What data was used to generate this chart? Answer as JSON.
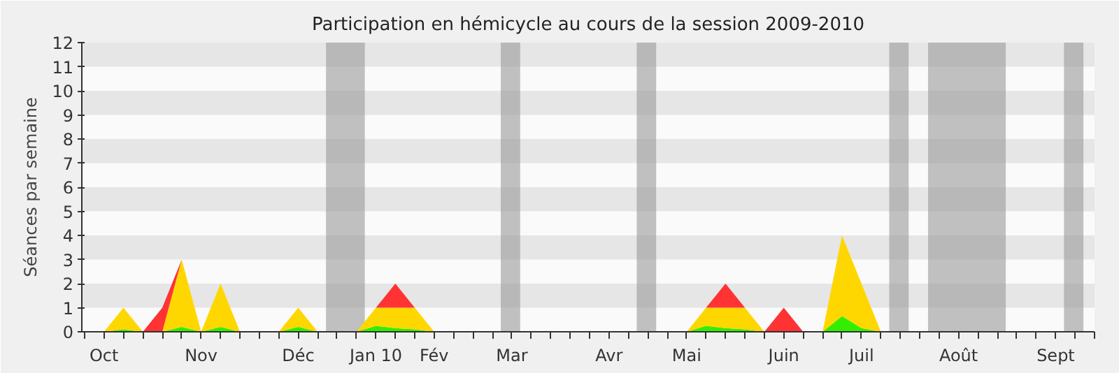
{
  "chart_data": {
    "type": "area",
    "title": "Participation en hémicycle au cours de la session 2009-2010",
    "ylabel": "Séances par semaine",
    "x": [
      "2009-09-28",
      "2009-10-05",
      "2009-10-12",
      "2009-10-19",
      "2009-10-26",
      "2009-11-02",
      "2009-11-09",
      "2009-11-16",
      "2009-11-23",
      "2009-11-30",
      "2009-12-07",
      "2009-12-14",
      "2009-12-21",
      "2009-12-28",
      "2010-01-04",
      "2010-01-11",
      "2010-01-18",
      "2010-01-25",
      "2010-02-01",
      "2010-02-08",
      "2010-02-15",
      "2010-02-22",
      "2010-03-01",
      "2010-03-08",
      "2010-03-15",
      "2010-03-22",
      "2010-03-29",
      "2010-04-05",
      "2010-04-12",
      "2010-04-19",
      "2010-04-26",
      "2010-05-03",
      "2010-05-10",
      "2010-05-17",
      "2010-05-24",
      "2010-05-31",
      "2010-06-07",
      "2010-06-14",
      "2010-06-21",
      "2010-06-28",
      "2010-07-05",
      "2010-07-12",
      "2010-07-19",
      "2010-07-26",
      "2010-08-02",
      "2010-08-09",
      "2010-08-16",
      "2010-08-23",
      "2010-08-30",
      "2010-09-06",
      "2010-09-13",
      "2010-09-20",
      "2010-09-27"
    ],
    "series": [
      {
        "color": "#33ee00",
        "values": [
          0,
          0,
          0.1,
          0,
          0,
          0.2,
          0,
          0.2,
          0,
          0,
          0,
          0.2,
          0,
          0,
          0,
          0.25,
          0.15,
          0.1,
          0,
          0,
          0,
          0,
          0,
          0,
          0,
          0,
          0,
          0,
          0,
          0,
          0,
          0,
          0.25,
          0.15,
          0.1,
          0,
          0,
          0,
          0,
          0.65,
          0.15,
          0,
          0,
          0,
          0,
          0,
          0,
          0,
          0,
          0,
          0,
          0,
          0
        ]
      },
      {
        "color": "#ffd700",
        "values": [
          0,
          0,
          0.9,
          0,
          0,
          2.8,
          0,
          1.8,
          0,
          0,
          0,
          0.8,
          0,
          0,
          0,
          0.75,
          0.85,
          0.9,
          0,
          0,
          0,
          0,
          0,
          0,
          0,
          0,
          0,
          0,
          0,
          0,
          0,
          0,
          0.75,
          0.85,
          0.9,
          0,
          0,
          0,
          0,
          3.35,
          1.85,
          0,
          0,
          0,
          0,
          0,
          0,
          0,
          0,
          0,
          0,
          0,
          0
        ]
      },
      {
        "color": "#ff3333",
        "values": [
          null,
          null,
          null,
          0,
          1,
          0,
          null,
          null,
          null,
          null,
          null,
          null,
          null,
          null,
          null,
          0,
          1,
          0,
          null,
          null,
          null,
          null,
          null,
          null,
          null,
          null,
          null,
          null,
          null,
          null,
          null,
          null,
          0,
          1,
          0,
          0,
          1,
          0,
          null,
          null,
          null,
          null,
          null,
          null,
          null,
          null,
          null,
          null,
          null,
          null,
          null,
          null,
          null
        ]
      }
    ],
    "stacked": true,
    "xlim": [
      "2009-09-27",
      "2010-09-27"
    ],
    "xticks": [
      {
        "value": "2009-09-28",
        "label": null
      },
      {
        "value": "2009-10-05",
        "label": "Oct"
      },
      {
        "value": "2009-10-12",
        "label": null
      },
      {
        "value": "2009-10-19",
        "label": null
      },
      {
        "value": "2009-10-26",
        "label": null
      },
      {
        "value": "2009-11-02",
        "label": null
      },
      {
        "value": "2009-11-09",
        "label": "Nov"
      },
      {
        "value": "2009-11-16",
        "label": null
      },
      {
        "value": "2009-11-23",
        "label": null
      },
      {
        "value": "2009-11-30",
        "label": null
      },
      {
        "value": "2009-12-07",
        "label": null
      },
      {
        "value": "2009-12-14",
        "label": "Déc"
      },
      {
        "value": "2009-12-21",
        "label": null
      },
      {
        "value": "2009-12-28",
        "label": null
      },
      {
        "value": "2010-01-04",
        "label": null
      },
      {
        "value": "2010-01-11",
        "label": "Jan 10"
      },
      {
        "value": "2010-01-18",
        "label": null
      },
      {
        "value": "2010-01-25",
        "label": null
      },
      {
        "value": "2010-02-01",
        "label": "Fév"
      },
      {
        "value": "2010-02-08",
        "label": null
      },
      {
        "value": "2010-02-15",
        "label": null
      },
      {
        "value": "2010-02-22",
        "label": null
      },
      {
        "value": "2010-03-01",
        "label": "Mar"
      },
      {
        "value": "2010-03-08",
        "label": null
      },
      {
        "value": "2010-03-15",
        "label": null
      },
      {
        "value": "2010-03-22",
        "label": null
      },
      {
        "value": "2010-03-29",
        "label": null
      },
      {
        "value": "2010-04-05",
        "label": "Avr"
      },
      {
        "value": "2010-04-12",
        "label": null
      },
      {
        "value": "2010-04-19",
        "label": null
      },
      {
        "value": "2010-04-26",
        "label": null
      },
      {
        "value": "2010-05-03",
        "label": "Mai"
      },
      {
        "value": "2010-05-10",
        "label": null
      },
      {
        "value": "2010-05-17",
        "label": null
      },
      {
        "value": "2010-05-24",
        "label": null
      },
      {
        "value": "2010-05-31",
        "label": null
      },
      {
        "value": "2010-06-07",
        "label": "Juin"
      },
      {
        "value": "2010-06-14",
        "label": null
      },
      {
        "value": "2010-06-21",
        "label": null
      },
      {
        "value": "2010-06-28",
        "label": null
      },
      {
        "value": "2010-07-05",
        "label": "Juil"
      },
      {
        "value": "2010-07-12",
        "label": null
      },
      {
        "value": "2010-07-19",
        "label": null
      },
      {
        "value": "2010-07-26",
        "label": null
      },
      {
        "value": "2010-08-02",
        "label": null
      },
      {
        "value": "2010-08-09",
        "label": "Août"
      },
      {
        "value": "2010-08-16",
        "label": null
      },
      {
        "value": "2010-08-23",
        "label": null
      },
      {
        "value": "2010-08-30",
        "label": null
      },
      {
        "value": "2010-09-06",
        "label": null
      },
      {
        "value": "2010-09-13",
        "label": "Sept"
      },
      {
        "value": "2010-09-20",
        "label": null
      },
      {
        "value": "2010-09-27",
        "label": null
      }
    ],
    "ylim": [
      0,
      12
    ],
    "yticks": [
      0,
      1,
      2,
      3,
      4,
      5,
      6,
      7,
      8,
      9,
      10,
      11,
      12
    ],
    "bands": [
      {
        "axis": "x",
        "from": "2009-12-24",
        "to": "2010-01-07",
        "color": "#999999"
      },
      {
        "axis": "x",
        "from": "2010-02-25",
        "to": "2010-03-04",
        "color": "#999999"
      },
      {
        "axis": "x",
        "from": "2010-04-15",
        "to": "2010-04-22",
        "color": "#999999"
      },
      {
        "axis": "x",
        "from": "2010-07-15",
        "to": "2010-07-22",
        "color": "#999999"
      },
      {
        "axis": "x",
        "from": "2010-07-29",
        "to": "2010-08-26",
        "color": "#999999"
      },
      {
        "axis": "x",
        "from": "2010-09-16",
        "to": "2010-09-23",
        "color": "#999999"
      }
    ]
  }
}
